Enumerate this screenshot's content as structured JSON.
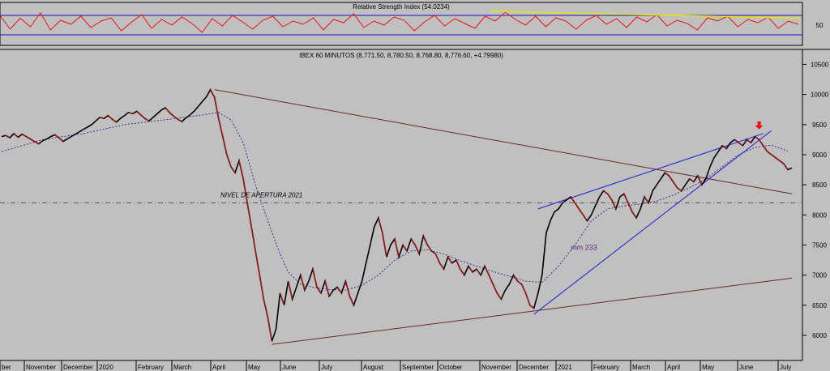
{
  "chart_data": [
    {
      "type": "line",
      "title": "Relative Strength Index (54.0234)",
      "ylim": [
        0,
        100
      ],
      "y_ticks": [
        50
      ],
      "levels": [
        30,
        70
      ],
      "series": [
        {
          "values": [
            72,
            38,
            65,
            44,
            78,
            36,
            60,
            50,
            70,
            42,
            58,
            66,
            34,
            55,
            74,
            40,
            62,
            48,
            68,
            52,
            30,
            64,
            46,
            72,
            56,
            38,
            60,
            70,
            44,
            58,
            50,
            66,
            36,
            62,
            54,
            76,
            42,
            58,
            48,
            68,
            60,
            34,
            56,
            72,
            46,
            64,
            52,
            40,
            70,
            58,
            80,
            62,
            48,
            70,
            44,
            66,
            58,
            38,
            60,
            72,
            50,
            64,
            42,
            68,
            56,
            74,
            46,
            60,
            52,
            36,
            66,
            58,
            70,
            44,
            62,
            54,
            68,
            40,
            58,
            50
          ]
        }
      ],
      "trendline": {
        "from": 82,
        "to": 65
      }
    },
    {
      "type": "line",
      "title": "IBEX 60 MINUTOS (8,771.50, 8,780.50, 8,768.80, 8,776.60, +4.79980)",
      "ylim": [
        5650,
        10600
      ],
      "y_ticks": [
        6000,
        6500,
        7000,
        7500,
        8000,
        8500,
        9000,
        9500,
        10000,
        10500
      ],
      "x_ticks": [
        "ber",
        "November",
        "December",
        "2020",
        "February",
        "March",
        "April",
        "May",
        "June",
        "July",
        "August",
        "September",
        "October",
        "November",
        "December",
        "2021",
        "February",
        "March",
        "April",
        "May",
        "June",
        "July"
      ],
      "annotation_level": {
        "label": "NIVEL DE APERTURA 2021",
        "value": 8200
      },
      "ma_label": "mm 233",
      "series": [
        {
          "name": "price",
          "points": [
            [
              0,
              9300
            ],
            [
              1,
              9320
            ],
            [
              2,
              9280
            ],
            [
              3,
              9350
            ],
            [
              4,
              9290
            ],
            [
              5,
              9340
            ],
            [
              6,
              9300
            ],
            [
              7,
              9260
            ],
            [
              8,
              9220
            ],
            [
              9,
              9180
            ],
            [
              10,
              9230
            ],
            [
              11,
              9260
            ],
            [
              12,
              9300
            ],
            [
              13,
              9330
            ],
            [
              14,
              9280
            ],
            [
              15,
              9220
            ],
            [
              16,
              9260
            ],
            [
              17,
              9300
            ],
            [
              18,
              9340
            ],
            [
              19,
              9380
            ],
            [
              20,
              9420
            ],
            [
              21,
              9460
            ],
            [
              22,
              9500
            ],
            [
              23,
              9560
            ],
            [
              24,
              9620
            ],
            [
              25,
              9600
            ],
            [
              26,
              9650
            ],
            [
              27,
              9590
            ],
            [
              28,
              9540
            ],
            [
              29,
              9600
            ],
            [
              30,
              9650
            ],
            [
              31,
              9700
            ],
            [
              32,
              9680
            ],
            [
              33,
              9720
            ],
            [
              34,
              9660
            ],
            [
              35,
              9600
            ],
            [
              36,
              9560
            ],
            [
              37,
              9620
            ],
            [
              38,
              9680
            ],
            [
              39,
              9740
            ],
            [
              40,
              9780
            ],
            [
              41,
              9700
            ],
            [
              42,
              9640
            ],
            [
              43,
              9590
            ],
            [
              44,
              9550
            ],
            [
              45,
              9610
            ],
            [
              46,
              9660
            ],
            [
              47,
              9720
            ],
            [
              48,
              9800
            ],
            [
              49,
              9880
            ],
            [
              50,
              9960
            ],
            [
              51,
              10080
            ],
            [
              52,
              9950
            ],
            [
              53,
              9600
            ],
            [
              54,
              9300
            ],
            [
              55,
              9000
            ],
            [
              56,
              8800
            ],
            [
              57,
              8700
            ],
            [
              58,
              8900
            ],
            [
              59,
              8600
            ],
            [
              60,
              8200
            ],
            [
              61,
              7800
            ],
            [
              62,
              7400
            ],
            [
              63,
              7000
            ],
            [
              64,
              6600
            ],
            [
              65,
              6300
            ],
            [
              66,
              5900
            ],
            [
              67,
              6100
            ],
            [
              68,
              6700
            ],
            [
              69,
              6500
            ],
            [
              70,
              6900
            ],
            [
              71,
              6600
            ],
            [
              72,
              6800
            ],
            [
              73,
              7000
            ],
            [
              74,
              6750
            ],
            [
              75,
              6900
            ],
            [
              76,
              7100
            ],
            [
              77,
              6800
            ],
            [
              78,
              6700
            ],
            [
              79,
              6900
            ],
            [
              80,
              6650
            ],
            [
              81,
              6750
            ],
            [
              82,
              6800
            ],
            [
              83,
              6700
            ],
            [
              84,
              6900
            ],
            [
              85,
              6650
            ],
            [
              86,
              6500
            ],
            [
              87,
              6700
            ],
            [
              88,
              6900
            ],
            [
              89,
              7200
            ],
            [
              90,
              7500
            ],
            [
              91,
              7800
            ],
            [
              92,
              7950
            ],
            [
              93,
              7700
            ],
            [
              94,
              7300
            ],
            [
              95,
              7500
            ],
            [
              96,
              7600
            ],
            [
              97,
              7300
            ],
            [
              98,
              7500
            ],
            [
              99,
              7400
            ],
            [
              100,
              7600
            ],
            [
              101,
              7500
            ],
            [
              102,
              7350
            ],
            [
              103,
              7650
            ],
            [
              104,
              7500
            ],
            [
              105,
              7400
            ],
            [
              106,
              7350
            ],
            [
              107,
              7200
            ],
            [
              108,
              7100
            ],
            [
              109,
              7300
            ],
            [
              110,
              7200
            ],
            [
              111,
              7250
            ],
            [
              112,
              7100
            ],
            [
              113,
              7000
            ],
            [
              114,
              7150
            ],
            [
              115,
              7050
            ],
            [
              116,
              7100
            ],
            [
              117,
              7000
            ],
            [
              118,
              7150
            ],
            [
              119,
              7000
            ],
            [
              120,
              6850
            ],
            [
              121,
              6700
            ],
            [
              122,
              6600
            ],
            [
              123,
              6750
            ],
            [
              124,
              6850
            ],
            [
              125,
              7000
            ],
            [
              126,
              6900
            ],
            [
              127,
              6850
            ],
            [
              128,
              6700
            ],
            [
              129,
              6500
            ],
            [
              130,
              6450
            ],
            [
              131,
              6700
            ],
            [
              132,
              7000
            ],
            [
              133,
              7700
            ],
            [
              134,
              7900
            ],
            [
              135,
              8050
            ],
            [
              136,
              8100
            ],
            [
              137,
              8200
            ],
            [
              138,
              8250
            ],
            [
              139,
              8300
            ],
            [
              140,
              8200
            ],
            [
              141,
              8100
            ],
            [
              142,
              8000
            ],
            [
              143,
              7900
            ],
            [
              144,
              8000
            ],
            [
              145,
              8150
            ],
            [
              146,
              8300
            ],
            [
              147,
              8400
            ],
            [
              148,
              8350
            ],
            [
              149,
              8250
            ],
            [
              150,
              8100
            ],
            [
              151,
              8300
            ],
            [
              152,
              8350
            ],
            [
              153,
              8200
            ],
            [
              154,
              8050
            ],
            [
              155,
              7950
            ],
            [
              156,
              8100
            ],
            [
              157,
              8300
            ],
            [
              158,
              8200
            ],
            [
              159,
              8400
            ],
            [
              160,
              8500
            ],
            [
              161,
              8600
            ],
            [
              162,
              8700
            ],
            [
              163,
              8650
            ],
            [
              164,
              8550
            ],
            [
              165,
              8450
            ],
            [
              166,
              8400
            ],
            [
              167,
              8500
            ],
            [
              168,
              8600
            ],
            [
              169,
              8550
            ],
            [
              170,
              8650
            ],
            [
              171,
              8500
            ],
            [
              172,
              8600
            ],
            [
              173,
              8800
            ],
            [
              174,
              8950
            ],
            [
              175,
              9050
            ],
            [
              176,
              9150
            ],
            [
              177,
              9100
            ],
            [
              178,
              9200
            ],
            [
              179,
              9250
            ],
            [
              180,
              9200
            ],
            [
              181,
              9150
            ],
            [
              182,
              9250
            ],
            [
              183,
              9200
            ],
            [
              184,
              9300
            ],
            [
              185,
              9250
            ],
            [
              186,
              9150
            ],
            [
              187,
              9050
            ],
            [
              188,
              9000
            ],
            [
              189,
              8950
            ],
            [
              190,
              8900
            ],
            [
              191,
              8850
            ],
            [
              192,
              8750
            ],
            [
              193,
              8780
            ]
          ]
        },
        {
          "name": "mm 233",
          "points": [
            [
              0,
              9050
            ],
            [
              10,
              9250
            ],
            [
              20,
              9350
            ],
            [
              30,
              9500
            ],
            [
              40,
              9580
            ],
            [
              48,
              9650
            ],
            [
              53,
              9700
            ],
            [
              56,
              9580
            ],
            [
              59,
              9200
            ],
            [
              62,
              8500
            ],
            [
              65,
              7900
            ],
            [
              68,
              7350
            ],
            [
              70,
              7050
            ],
            [
              73,
              6850
            ],
            [
              76,
              6800
            ],
            [
              80,
              6760
            ],
            [
              84,
              6750
            ],
            [
              88,
              6830
            ],
            [
              92,
              7000
            ],
            [
              96,
              7250
            ],
            [
              100,
              7400
            ],
            [
              104,
              7420
            ],
            [
              108,
              7350
            ],
            [
              112,
              7240
            ],
            [
              116,
              7150
            ],
            [
              120,
              7060
            ],
            [
              124,
              6980
            ],
            [
              128,
              6900
            ],
            [
              132,
              6880
            ],
            [
              136,
              7150
            ],
            [
              140,
              7500
            ],
            [
              144,
              7900
            ],
            [
              148,
              8100
            ],
            [
              152,
              8150
            ],
            [
              156,
              8180
            ],
            [
              160,
              8230
            ],
            [
              164,
              8330
            ],
            [
              168,
              8450
            ],
            [
              172,
              8600
            ],
            [
              176,
              8800
            ],
            [
              180,
              9000
            ],
            [
              184,
              9120
            ],
            [
              188,
              9160
            ],
            [
              192,
              9060
            ]
          ]
        }
      ],
      "trendlines": [
        {
          "points": [
            [
              52,
              10080
            ],
            [
              193,
              8350
            ]
          ],
          "color": "#6b2a2a"
        },
        {
          "points": [
            [
              66,
              5850
            ],
            [
              193,
              6950
            ]
          ],
          "color": "#6b2a2a"
        },
        {
          "points": [
            [
              131,
              8100
            ],
            [
              186,
              9350
            ]
          ],
          "color": "#1a1ad8"
        },
        {
          "points": [
            [
              130,
              6350
            ],
            [
              188,
              9400
            ]
          ],
          "color": "#1a1ad8"
        }
      ],
      "marker_arrow": {
        "x": 185,
        "value": 9420,
        "color": "#ee1111"
      }
    }
  ]
}
